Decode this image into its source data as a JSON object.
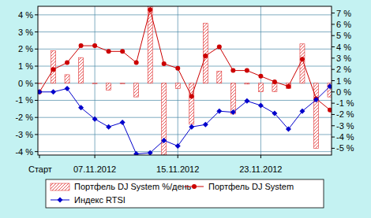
{
  "chart_data": {
    "type": "line",
    "categories": [
      "Старт",
      null,
      null,
      null,
      "07.11.2012",
      null,
      null,
      null,
      null,
      null,
      "15.11.2012",
      null,
      null,
      null,
      null,
      null,
      "23.11.2012",
      null,
      null,
      null,
      null,
      null
    ],
    "series": [
      {
        "name": "Портфель DJ System %/день",
        "type": "bar",
        "color": "#e03030",
        "values": [
          0,
          1.9,
          0.5,
          1.5,
          0,
          -0.4,
          0,
          -0.8,
          4.5,
          -4.2,
          -0.3,
          -2.4,
          3.5,
          0.7,
          -1.8,
          -0.05,
          -0.5,
          -0.5,
          -0.3,
          2.3,
          -3.8,
          -0.8
        ]
      },
      {
        "name": "Портфель DJ System",
        "type": "line",
        "axis": "y2",
        "color": "#cc0000",
        "marker": "circle",
        "values": [
          0,
          2.0,
          2.6,
          4.1,
          4.1,
          3.6,
          3.6,
          2.6,
          7.3,
          2.5,
          2.1,
          -0.4,
          3.2,
          4.0,
          1.9,
          1.9,
          1.4,
          0.9,
          0.5,
          2.9,
          -0.6,
          -1.6
        ]
      },
      {
        "name": "Индекс RTSI",
        "type": "line",
        "axis": "y2",
        "color": "#0000cc",
        "marker": "diamond",
        "values": [
          0,
          0,
          0.3,
          -1.4,
          -2.4,
          -3.1,
          -2.7,
          -5.5,
          -5.4,
          -4.3,
          -4.8,
          -3.1,
          -2.9,
          -1.7,
          -1.8,
          -0.8,
          -1.2,
          -1.9,
          -3.3,
          -1.7,
          -0.7,
          0.5
        ]
      }
    ],
    "ylim": [
      -4.2,
      4.5
    ],
    "yticks": [
      {
        "value": 4,
        "label": "4 %"
      },
      {
        "value": 3,
        "label": "3 %"
      },
      {
        "value": 2,
        "label": "2 %"
      },
      {
        "value": 1,
        "label": "1 %"
      },
      {
        "value": 0,
        "label": "0 %"
      },
      {
        "value": -1,
        "label": "-1 %"
      },
      {
        "value": -2,
        "label": "-2 %"
      },
      {
        "value": -3,
        "label": "-3 %"
      },
      {
        "value": -4,
        "label": "-4 %"
      }
    ],
    "y2lim": [
      -5.6,
      7.6
    ],
    "y2ticks": [
      {
        "value": 7,
        "label": "7 %"
      },
      {
        "value": 6,
        "label": "6 %"
      },
      {
        "value": 5,
        "label": "5 %"
      },
      {
        "value": 4,
        "label": "4 %"
      },
      {
        "value": 3,
        "label": "3 %"
      },
      {
        "value": 2,
        "label": "2 %"
      },
      {
        "value": 1,
        "label": "1 %"
      },
      {
        "value": 0,
        "label": "0 %"
      },
      {
        "value": -1,
        "label": "-1 %"
      },
      {
        "value": -2,
        "label": "-2 %"
      },
      {
        "value": -3,
        "label": "-3 %"
      },
      {
        "value": -4,
        "label": "-4 %"
      },
      {
        "value": -5,
        "label": "-5 %"
      }
    ],
    "grid": true,
    "legend": "bottom"
  }
}
